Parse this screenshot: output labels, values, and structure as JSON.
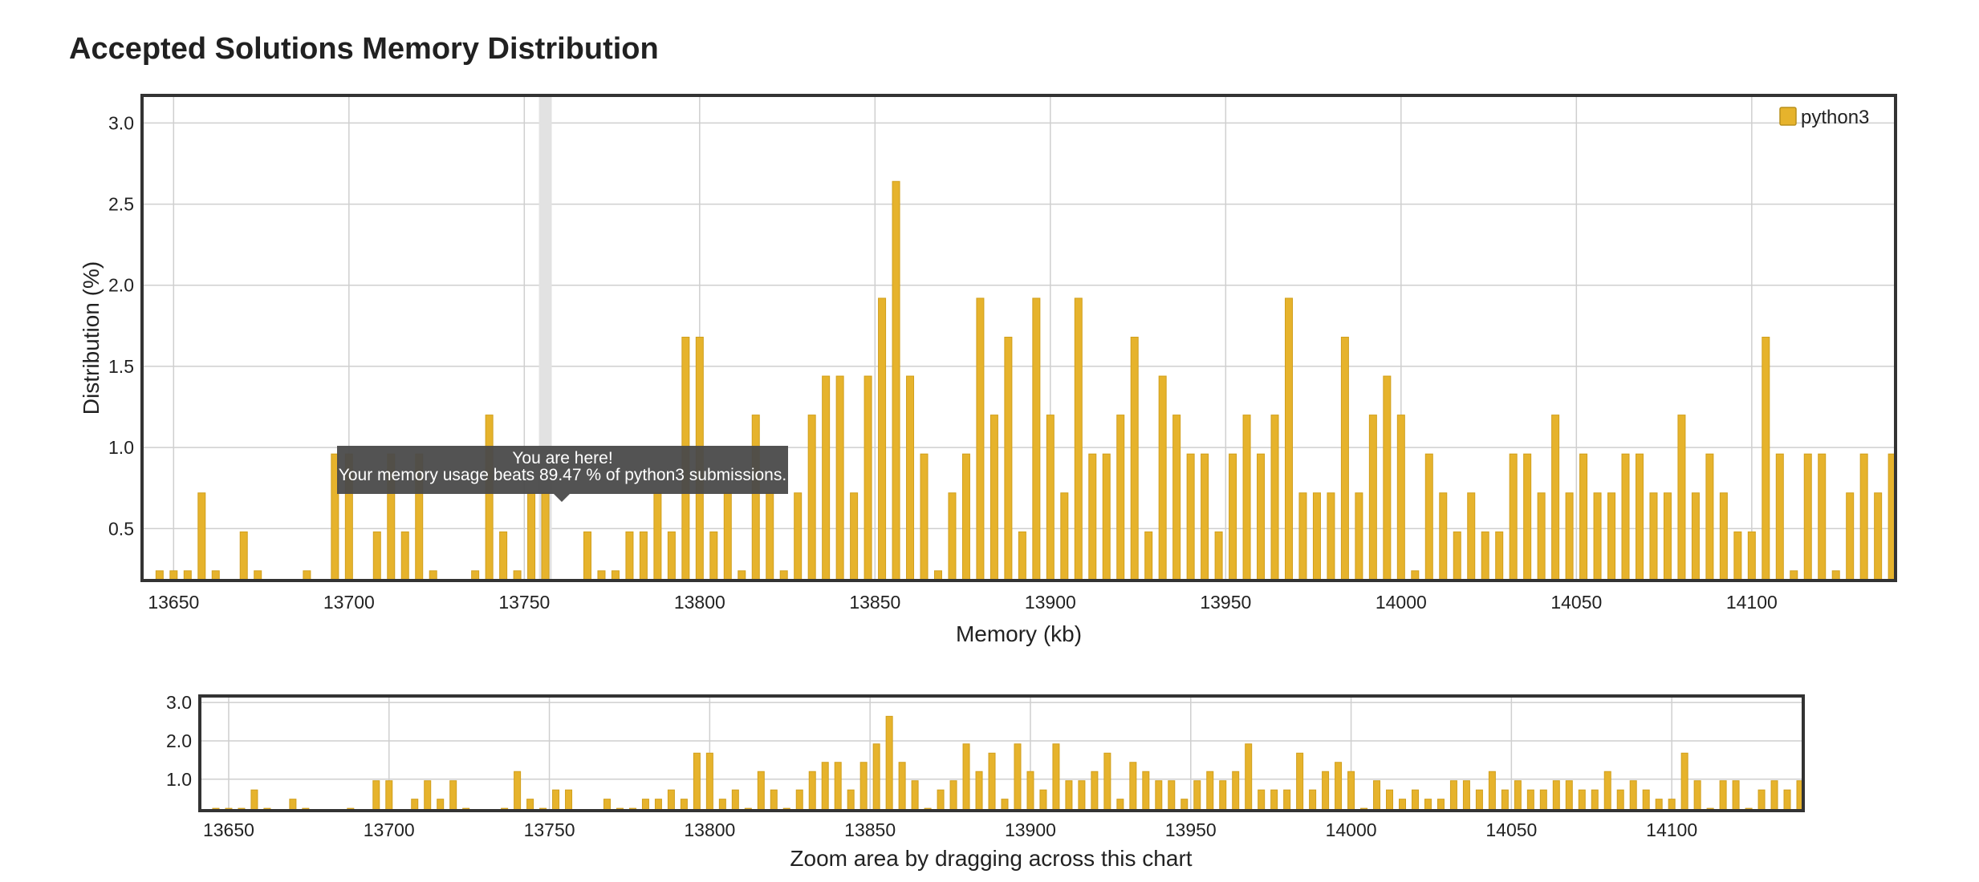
{
  "title": "Accepted Solutions Memory Distribution",
  "zoom_note": "Zoom area by dragging across this chart",
  "tooltip": {
    "line1": "You are here!",
    "line2": "Your memory usage beats 89.47 % of python3 submissions."
  },
  "colors": {
    "bar": "#E6B32C",
    "highlight_band": "#E2E2E2",
    "tooltip_bg": "#4A4A4A"
  },
  "chart_data": [
    {
      "type": "bar",
      "xlabel": "Memory (kb)",
      "ylabel": "Distribution (%)",
      "xlim": [
        13641,
        14141
      ],
      "ylim": [
        0.18,
        3.17
      ],
      "xticks": [
        13650,
        13700,
        13750,
        13800,
        13850,
        13900,
        13950,
        14000,
        14050,
        14100
      ],
      "yticks": [
        0.5,
        1.0,
        1.5,
        2.0,
        2.5,
        3.0
      ],
      "ytick_labels": [
        "0.5",
        "1.0",
        "1.5",
        "2.0",
        "2.5",
        "3.0"
      ],
      "legend": {
        "position": "top-right",
        "label": "python3"
      },
      "grid": true,
      "highlight_x": 13756,
      "series": [
        {
          "name": "python3",
          "x": [
            13646,
            13650,
            13654,
            13658,
            13662,
            13670,
            13674,
            13688,
            13696,
            13700,
            13708,
            13712,
            13716,
            13720,
            13724,
            13736,
            13740,
            13744,
            13748,
            13752,
            13756,
            13768,
            13772,
            13776,
            13780,
            13784,
            13788,
            13792,
            13796,
            13800,
            13804,
            13808,
            13812,
            13816,
            13820,
            13824,
            13828,
            13832,
            13836,
            13840,
            13844,
            13848,
            13852,
            13856,
            13860,
            13864,
            13868,
            13872,
            13876,
            13880,
            13884,
            13888,
            13892,
            13896,
            13900,
            13904,
            13908,
            13912,
            13916,
            13920,
            13924,
            13928,
            13932,
            13936,
            13940,
            13944,
            13948,
            13952,
            13956,
            13960,
            13964,
            13968,
            13972,
            13976,
            13980,
            13984,
            13988,
            13992,
            13996,
            14000,
            14004,
            14008,
            14012,
            14016,
            14020,
            14024,
            14028,
            14032,
            14036,
            14040,
            14044,
            14048,
            14052,
            14056,
            14060,
            14064,
            14068,
            14072,
            14076,
            14080,
            14084,
            14088,
            14092,
            14096,
            14100,
            14104,
            14108,
            14112,
            14116,
            14120,
            14124,
            14128,
            14132,
            14136,
            14140
          ],
          "values": [
            0.24,
            0.24,
            0.24,
            0.72,
            0.24,
            0.48,
            0.24,
            0.24,
            0.96,
            0.96,
            0.48,
            0.96,
            0.48,
            0.96,
            0.24,
            0.24,
            1.2,
            0.48,
            0.24,
            0.72,
            0.72,
            0.48,
            0.24,
            0.24,
            0.48,
            0.48,
            0.72,
            0.48,
            1.68,
            1.68,
            0.48,
            0.72,
            0.24,
            1.2,
            0.72,
            0.24,
            0.72,
            1.2,
            1.44,
            1.44,
            0.72,
            1.44,
            1.92,
            2.64,
            1.44,
            0.96,
            0.24,
            0.72,
            0.96,
            1.92,
            1.2,
            1.68,
            0.48,
            1.92,
            1.2,
            0.72,
            1.92,
            0.96,
            0.96,
            1.2,
            1.68,
            0.48,
            1.44,
            1.2,
            0.96,
            0.96,
            0.48,
            0.96,
            1.2,
            0.96,
            1.2,
            1.92,
            0.72,
            0.72,
            0.72,
            1.68,
            0.72,
            1.2,
            1.44,
            1.2,
            0.24,
            0.96,
            0.72,
            0.48,
            0.72,
            0.48,
            0.48,
            0.96,
            0.96,
            0.72,
            1.2,
            0.72,
            0.96,
            0.72,
            0.72,
            0.96,
            0.96,
            0.72,
            0.72,
            1.2,
            0.72,
            0.96,
            0.72,
            0.48,
            0.48,
            1.68,
            0.96,
            0.24,
            0.96,
            0.96,
            0.24,
            0.72,
            0.96,
            0.72,
            0.96
          ]
        }
      ]
    },
    {
      "type": "bar",
      "xlim": [
        13641,
        14141
      ],
      "ylim": [
        0.18,
        3.17
      ],
      "xticks": [
        13650,
        13700,
        13750,
        13800,
        13850,
        13900,
        13950,
        14000,
        14050,
        14100
      ],
      "yticks": [
        1.0,
        2.0,
        3.0
      ],
      "ytick_labels": [
        "1.0",
        "2.0",
        "3.0"
      ],
      "grid": true,
      "series_ref": "same as main chart"
    }
  ]
}
